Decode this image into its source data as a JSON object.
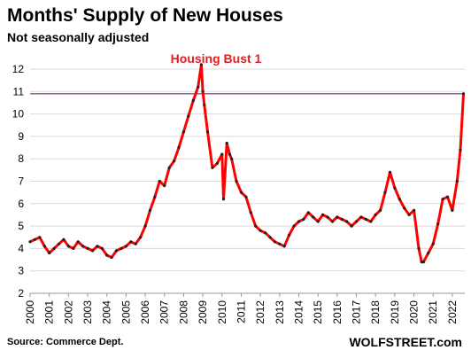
{
  "chart_data": {
    "type": "line",
    "title": "Months' Supply of New Houses",
    "subtitle": "Not seasonally adjusted",
    "annotation": "Housing Bust 1",
    "reference_value": 10.9,
    "source": "Source: Commerce Dept.",
    "brand": "WOLFSTREET.com",
    "ylim": [
      2,
      12
    ],
    "y_ticks": [
      "2",
      "3",
      "4",
      "5",
      "6",
      "7",
      "8",
      "9",
      "10",
      "11",
      "12"
    ],
    "x_ticks": [
      "2000",
      "2001",
      "2002",
      "2003",
      "2004",
      "2005",
      "2006",
      "2007",
      "2008",
      "2009",
      "2010",
      "2011",
      "2012",
      "2013",
      "2014",
      "2015",
      "2016",
      "2017",
      "2018",
      "2019",
      "2020",
      "2021",
      "2022"
    ],
    "colors": {
      "line": "#ff0000",
      "marker": "#222222",
      "reference": "#7b2a7b",
      "grid": "#d9d9d9",
      "annotation": "#e02020"
    },
    "series": [
      {
        "x": [
          2000.0,
          2000.25,
          2000.5,
          2000.75,
          2001.0,
          2001.25,
          2001.5,
          2001.75,
          2002.0,
          2002.25,
          2002.5,
          2002.75,
          2003.0,
          2003.25,
          2003.5,
          2003.75,
          2004.0,
          2004.25,
          2004.5,
          2004.75,
          2005.0,
          2005.25,
          2005.5,
          2005.75,
          2006.0,
          2006.25,
          2006.5,
          2006.75,
          2007.0,
          2007.25,
          2007.5,
          2007.75,
          2008.0,
          2008.25,
          2008.5,
          2008.75,
          2008.92,
          2009.0,
          2009.08,
          2009.25,
          2009.5,
          2009.75,
          2010.0,
          2010.08,
          2010.25,
          2010.4,
          2010.5,
          2010.75,
          2011.0,
          2011.25,
          2011.5,
          2011.75,
          2012.0,
          2012.25,
          2012.5,
          2012.75,
          2013.0,
          2013.25,
          2013.5,
          2013.75,
          2014.0,
          2014.25,
          2014.5,
          2014.75,
          2015.0,
          2015.25,
          2015.5,
          2015.75,
          2016.0,
          2016.25,
          2016.5,
          2016.75,
          2017.0,
          2017.25,
          2017.5,
          2017.75,
          2018.0,
          2018.25,
          2018.5,
          2018.75,
          2019.0,
          2019.25,
          2019.5,
          2019.75,
          2020.0,
          2020.25,
          2020.4,
          2020.5,
          2020.75,
          2021.0,
          2021.25,
          2021.5,
          2021.75,
          2022.0,
          2022.25,
          2022.42,
          2022.58
        ],
        "values": [
          4.3,
          4.4,
          4.5,
          4.1,
          3.8,
          4.0,
          4.2,
          4.4,
          4.1,
          4.0,
          4.3,
          4.1,
          4.0,
          3.9,
          4.1,
          4.0,
          3.7,
          3.6,
          3.9,
          4.0,
          4.1,
          4.3,
          4.2,
          4.5,
          5.0,
          5.7,
          6.3,
          7.0,
          6.8,
          7.6,
          7.9,
          8.5,
          9.2,
          9.9,
          10.6,
          11.2,
          12.2,
          11.0,
          10.4,
          9.2,
          7.6,
          7.8,
          8.2,
          6.2,
          8.7,
          8.2,
          8.0,
          7.0,
          6.5,
          6.3,
          5.6,
          5.0,
          4.8,
          4.7,
          4.5,
          4.3,
          4.2,
          4.1,
          4.6,
          5.0,
          5.2,
          5.3,
          5.6,
          5.4,
          5.2,
          5.5,
          5.4,
          5.2,
          5.4,
          5.3,
          5.2,
          5.0,
          5.2,
          5.4,
          5.3,
          5.2,
          5.5,
          5.7,
          6.5,
          7.4,
          6.7,
          6.2,
          5.8,
          5.5,
          5.7,
          4.0,
          3.4,
          3.4,
          3.8,
          4.2,
          5.1,
          6.2,
          6.3,
          5.7,
          7.0,
          8.4,
          10.9
        ]
      }
    ]
  }
}
